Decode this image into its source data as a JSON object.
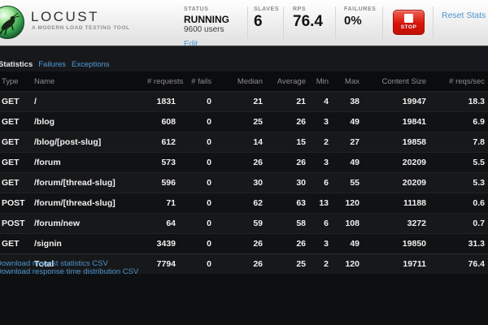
{
  "header": {
    "logo": {
      "title": "LOCUST",
      "tagline": "A MODERN LOAD TESTING TOOL"
    },
    "status": {
      "label": "STATUS",
      "state": "RUNNING",
      "users": "9600 users",
      "edit_label": "Edit"
    },
    "slaves": {
      "label": "SLAVES",
      "value": "6"
    },
    "rps": {
      "label": "RPS",
      "value": "76.4"
    },
    "failures": {
      "label": "FAILURES",
      "value": "0%"
    },
    "stop_button": {
      "label": "STOP"
    },
    "reset_label": "Reset Stats"
  },
  "tabs": [
    {
      "label": "Statistics",
      "active": true
    },
    {
      "label": "Failures",
      "active": false
    },
    {
      "label": "Exceptions",
      "active": false
    }
  ],
  "table": {
    "columns": [
      "Type",
      "Name",
      "# requests",
      "# fails",
      "Median",
      "Average",
      "Min",
      "Max",
      "Content Size",
      "# reqs/sec"
    ],
    "rows": [
      [
        "GET",
        "/",
        "1831",
        "0",
        "21",
        "21",
        "4",
        "38",
        "19947",
        "18.3"
      ],
      [
        "GET",
        "/blog",
        "608",
        "0",
        "25",
        "26",
        "3",
        "49",
        "19841",
        "6.9"
      ],
      [
        "GET",
        "/blog/[post-slug]",
        "612",
        "0",
        "14",
        "15",
        "2",
        "27",
        "19858",
        "7.8"
      ],
      [
        "GET",
        "/forum",
        "573",
        "0",
        "26",
        "26",
        "3",
        "49",
        "20209",
        "5.5"
      ],
      [
        "GET",
        "/forum/[thread-slug]",
        "596",
        "0",
        "30",
        "30",
        "6",
        "55",
        "20209",
        "5.3"
      ],
      [
        "POST",
        "/forum/[thread-slug]",
        "71",
        "0",
        "62",
        "63",
        "13",
        "120",
        "11188",
        "0.6"
      ],
      [
        "POST",
        "/forum/new",
        "64",
        "0",
        "59",
        "58",
        "6",
        "108",
        "3272",
        "0.7"
      ],
      [
        "GET",
        "/signin",
        "3439",
        "0",
        "26",
        "26",
        "3",
        "49",
        "19850",
        "31.3"
      ],
      [
        "",
        "Total",
        "7794",
        "0",
        "26",
        "25",
        "2",
        "120",
        "19711",
        "76.4"
      ]
    ],
    "total_row_label": "Total"
  },
  "csv_links": [
    "Download request statistics CSV",
    "Download response time distribution CSV"
  ],
  "icons": {
    "logo": "locust-grasshopper-icon",
    "stop": "stop-square-icon"
  },
  "colors": {
    "accent_blue": "#4f9fd9",
    "edit_blue": "#4b94cd",
    "stop_red": "#d81408",
    "status_green_logo": "#3aa045"
  }
}
